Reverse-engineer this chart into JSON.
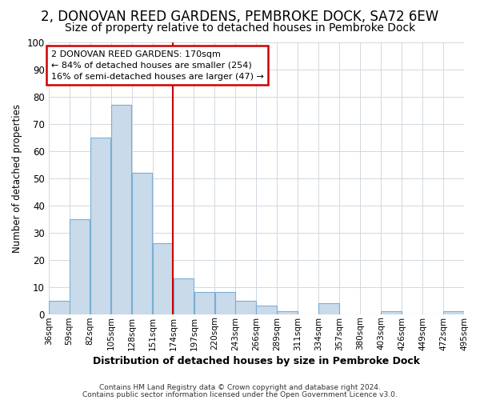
{
  "title": "2, DONOVAN REED GARDENS, PEMBROKE DOCK, SA72 6EW",
  "subtitle": "Size of property relative to detached houses in Pembroke Dock",
  "xlabel": "Distribution of detached houses by size in Pembroke Dock",
  "ylabel": "Number of detached properties",
  "bar_values": [
    5,
    35,
    65,
    77,
    52,
    26,
    13,
    8,
    8,
    5,
    3,
    1,
    0,
    4,
    0,
    0,
    1,
    0,
    0,
    1
  ],
  "bar_labels": [
    "36sqm",
    "59sqm",
    "82sqm",
    "105sqm",
    "128sqm",
    "151sqm",
    "174sqm",
    "197sqm",
    "220sqm",
    "243sqm",
    "266sqm",
    "289sqm",
    "311sqm",
    "334sqm",
    "357sqm",
    "380sqm",
    "403sqm",
    "426sqm",
    "449sqm",
    "472sqm",
    "495sqm"
  ],
  "bar_color": "#c9daea",
  "bar_edge_color": "#7aaed4",
  "property_line_color": "#cc0000",
  "annotation_text": "2 DONOVAN REED GARDENS: 170sqm\n← 84% of detached houses are smaller (254)\n16% of semi-detached houses are larger (47) →",
  "annotation_box_color": "#ffffff",
  "annotation_box_edge": "#cc0000",
  "ylim": [
    0,
    100
  ],
  "yticks": [
    0,
    10,
    20,
    30,
    40,
    50,
    60,
    70,
    80,
    90,
    100
  ],
  "footer_line1": "Contains HM Land Registry data © Crown copyright and database right 2024.",
  "footer_line2": "Contains public sector information licensed under the Open Government Licence v3.0.",
  "plot_bg_color": "#ffffff",
  "fig_bg_color": "#ffffff",
  "grid_color": "#d0d8e0",
  "title_fontsize": 12,
  "subtitle_fontsize": 10,
  "title_fontweight": "normal"
}
